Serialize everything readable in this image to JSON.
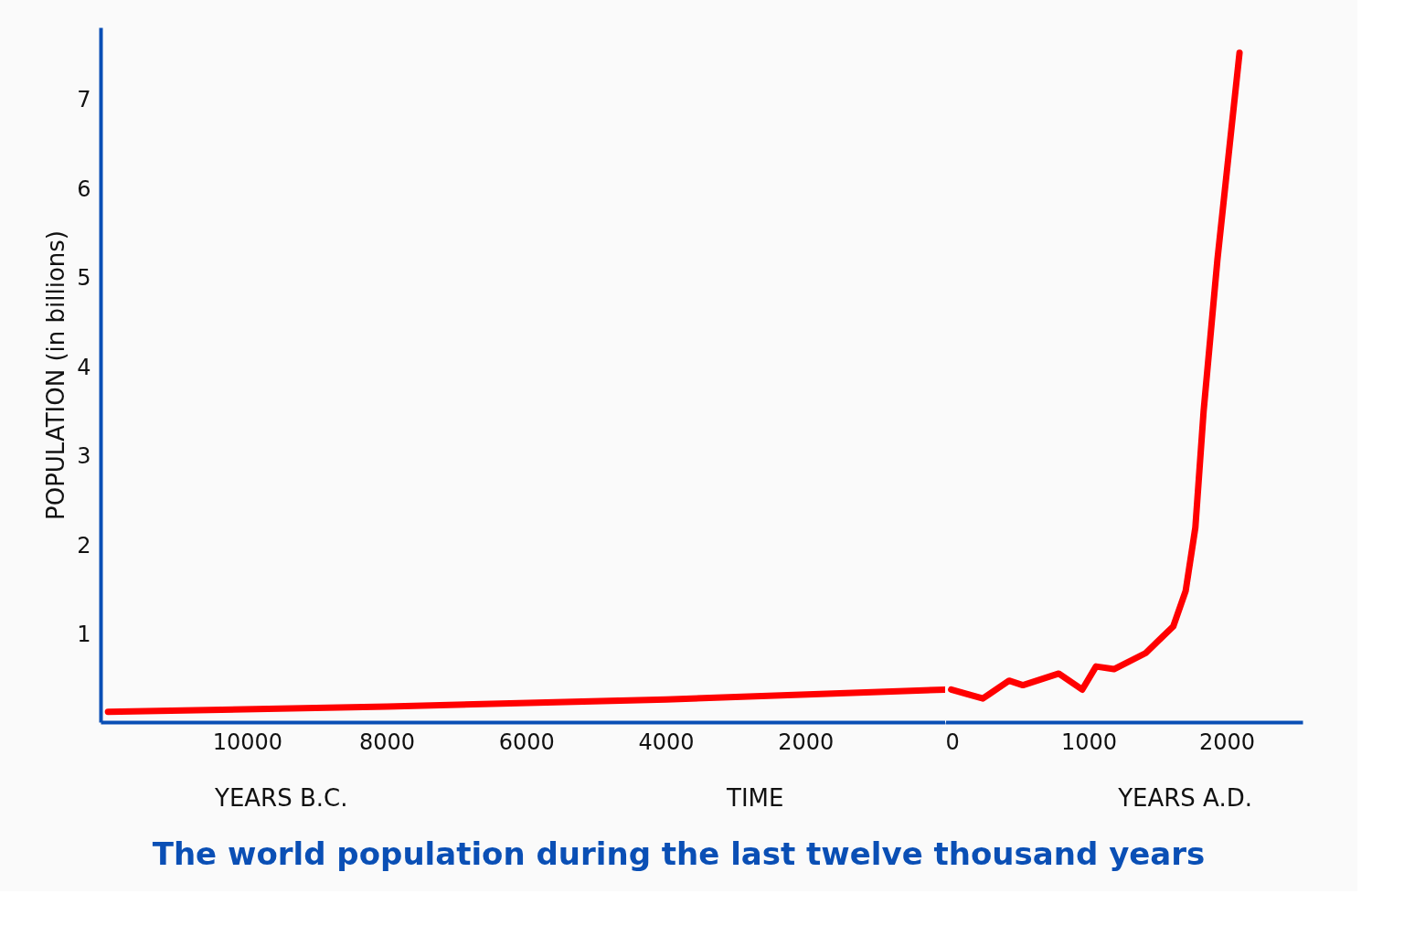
{
  "chart_data": [
    {
      "type": "line",
      "title": "The world population during the last twelve thousand years",
      "xlabel": "TIME",
      "ylabel": "POPULATION (in billions)",
      "annotations": [
        "YEARS B.C."
      ],
      "x": [
        12000,
        8000,
        4000,
        0
      ],
      "series": [
        {
          "color": "#ff0000",
          "values": [
            0.12,
            0.18,
            0.26,
            0.37
          ]
        }
      ],
      "xlim": [
        12100,
        0
      ],
      "ylim": [
        0,
        7.8
      ],
      "xticks": [
        10000,
        8000,
        6000,
        4000,
        2000
      ],
      "yticks": [
        1,
        2,
        3,
        4,
        5,
        6,
        7
      ],
      "grid": false,
      "marker": "none",
      "line_style": "solid"
    },
    {
      "type": "line",
      "annotations": [
        "YEARS A.D."
      ],
      "x": [
        0,
        230,
        420,
        520,
        780,
        950,
        1050,
        1180,
        1410,
        1610,
        1700,
        1770,
        1830,
        1930,
        2090
      ],
      "series": [
        {
          "color": "#ff0000",
          "values": [
            0.37,
            0.27,
            0.47,
            0.42,
            0.55,
            0.37,
            0.63,
            0.6,
            0.78,
            1.08,
            1.48,
            2.19,
            3.5,
            5.2,
            7.52
          ]
        }
      ],
      "xlim": [
        -40,
        2550
      ],
      "ylim": [
        0,
        7.8
      ],
      "xticks": [
        0,
        1000,
        2000
      ],
      "tick_labels": "x",
      "grid": false,
      "marker": "none",
      "line_style": "solid"
    }
  ]
}
